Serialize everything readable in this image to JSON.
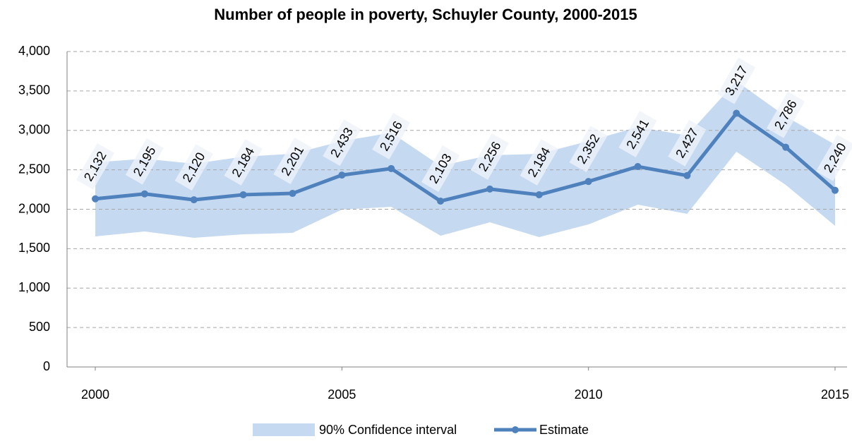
{
  "chart_data": {
    "type": "line",
    "title": "Number of people in poverty, Schuyler County, 2000-2015",
    "x": [
      2000,
      2001,
      2002,
      2003,
      2004,
      2005,
      2006,
      2007,
      2008,
      2009,
      2010,
      2011,
      2012,
      2013,
      2014,
      2015
    ],
    "xlim": [
      2000,
      2015
    ],
    "xticks": [
      2000,
      2005,
      2010,
      2015
    ],
    "ylim": [
      0,
      4000
    ],
    "yticks": [
      0,
      500,
      {
        "value": 1000,
        "label": "1,000"
      },
      {
        "value": 1500,
        "label": "1,500"
      },
      {
        "value": 2000,
        "label": "2,000"
      },
      {
        "value": 2500,
        "label": "2,500"
      },
      {
        "value": 3000,
        "label": "3,000"
      },
      {
        "value": 3500,
        "label": "3,500"
      },
      {
        "value": 4000,
        "label": "4,000"
      }
    ],
    "grid": true,
    "legend": "bottom",
    "band": {
      "name": "90% Confidence interval",
      "color": "#c5d9f1",
      "upper": [
        2595,
        2640,
        2577,
        2667,
        2702,
        2863,
        2971,
        2550,
        2685,
        2702,
        2863,
        3043,
        2935,
        3624,
        3177,
        2819
      ],
      "lower": [
        1655,
        1718,
        1638,
        1682,
        1700,
        1995,
        2031,
        1664,
        1834,
        1647,
        1808,
        2058,
        1942,
        2729,
        2309,
        1790
      ]
    },
    "series": [
      {
        "name": "Estimate",
        "color": "#4f81bd",
        "values": [
          2132,
          2195,
          2120,
          2184,
          2201,
          2433,
          2516,
          2103,
          2256,
          2184,
          2352,
          2541,
          2427,
          3217,
          2786,
          2240
        ],
        "value_labels": [
          "2,132",
          "2,195",
          "2,120",
          "2,184",
          "2,201",
          "2,433",
          "2,516",
          "2,103",
          "2,256",
          "2,184",
          "2,352",
          "2,541",
          "2,427",
          "3,217",
          "2,786",
          "2,240"
        ]
      }
    ]
  }
}
